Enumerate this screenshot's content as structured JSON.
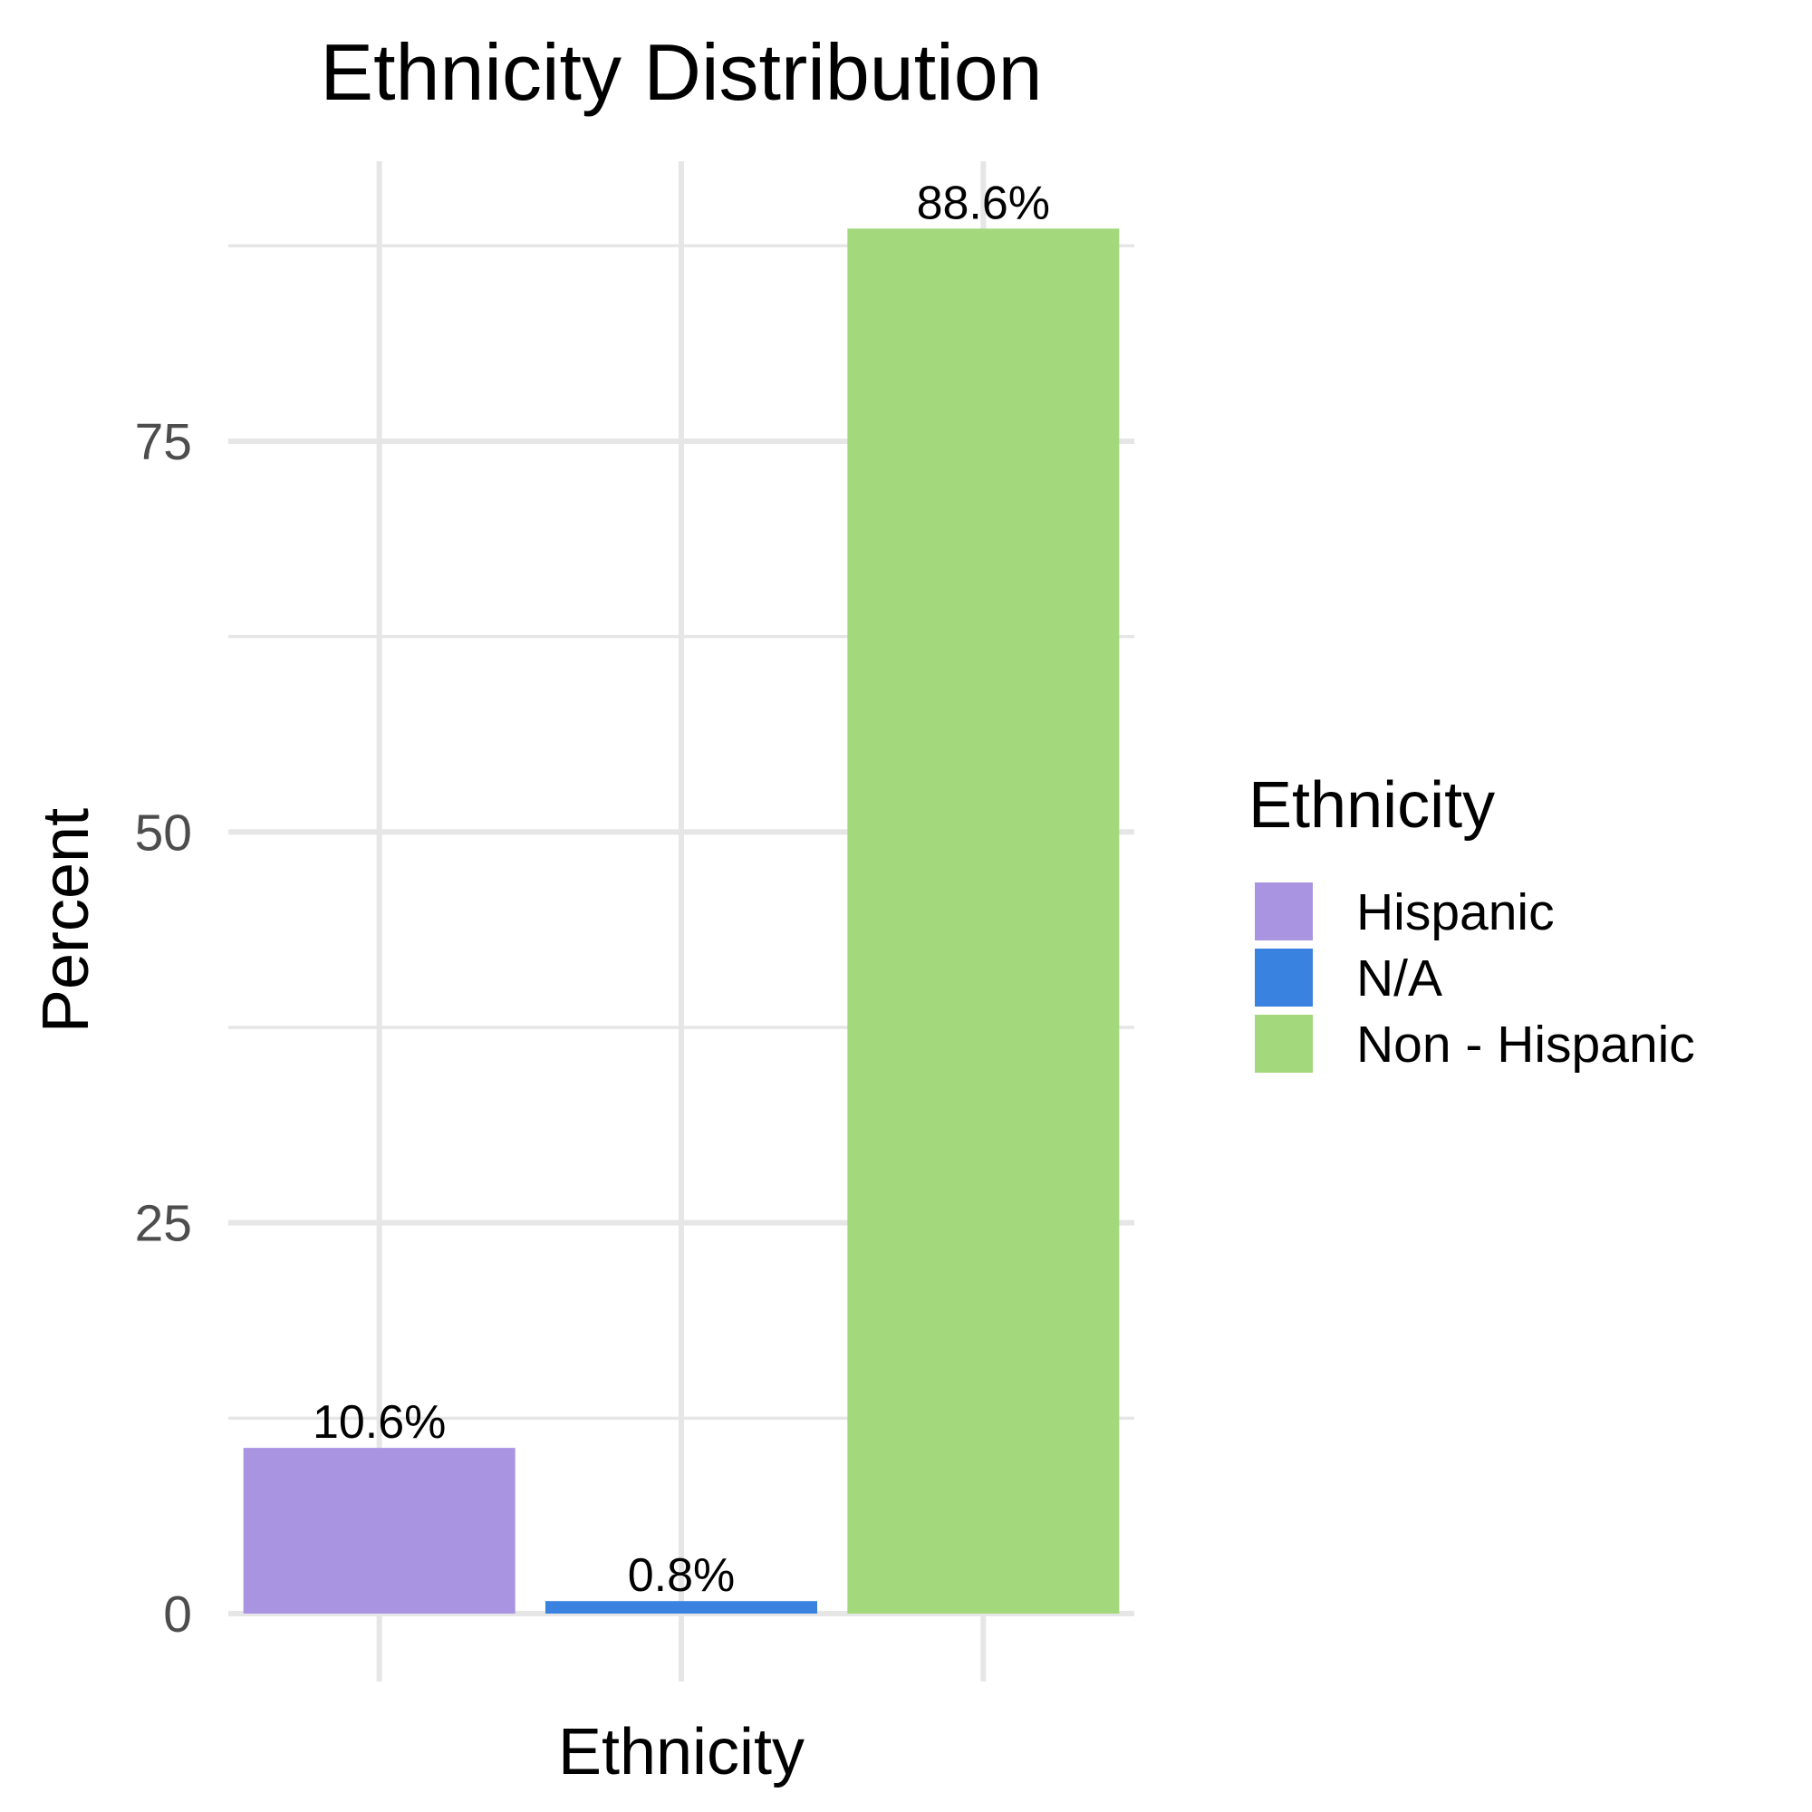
{
  "chart_data": {
    "type": "bar",
    "title": "Ethnicity Distribution",
    "xlabel": "Ethnicity",
    "ylabel": "Percent",
    "categories": [
      "Hispanic",
      "N/A",
      "Non - Hispanic"
    ],
    "values": [
      10.6,
      0.8,
      88.6
    ],
    "data_labels": [
      "10.6%",
      "0.8%",
      "88.6%"
    ],
    "colors": [
      "#A994E2",
      "#3A82DF",
      "#A3D87C"
    ],
    "ylim": [
      0,
      88.6
    ],
    "yticks": [
      0,
      25,
      50,
      75
    ],
    "ytick_labels": [
      "0",
      "25",
      "50",
      "75"
    ],
    "x_tick_labels_shown": false,
    "grid": true,
    "legend": {
      "title": "Ethnicity",
      "position": "right",
      "entries": [
        "Hispanic",
        "N/A",
        "Non - Hispanic"
      ]
    }
  }
}
